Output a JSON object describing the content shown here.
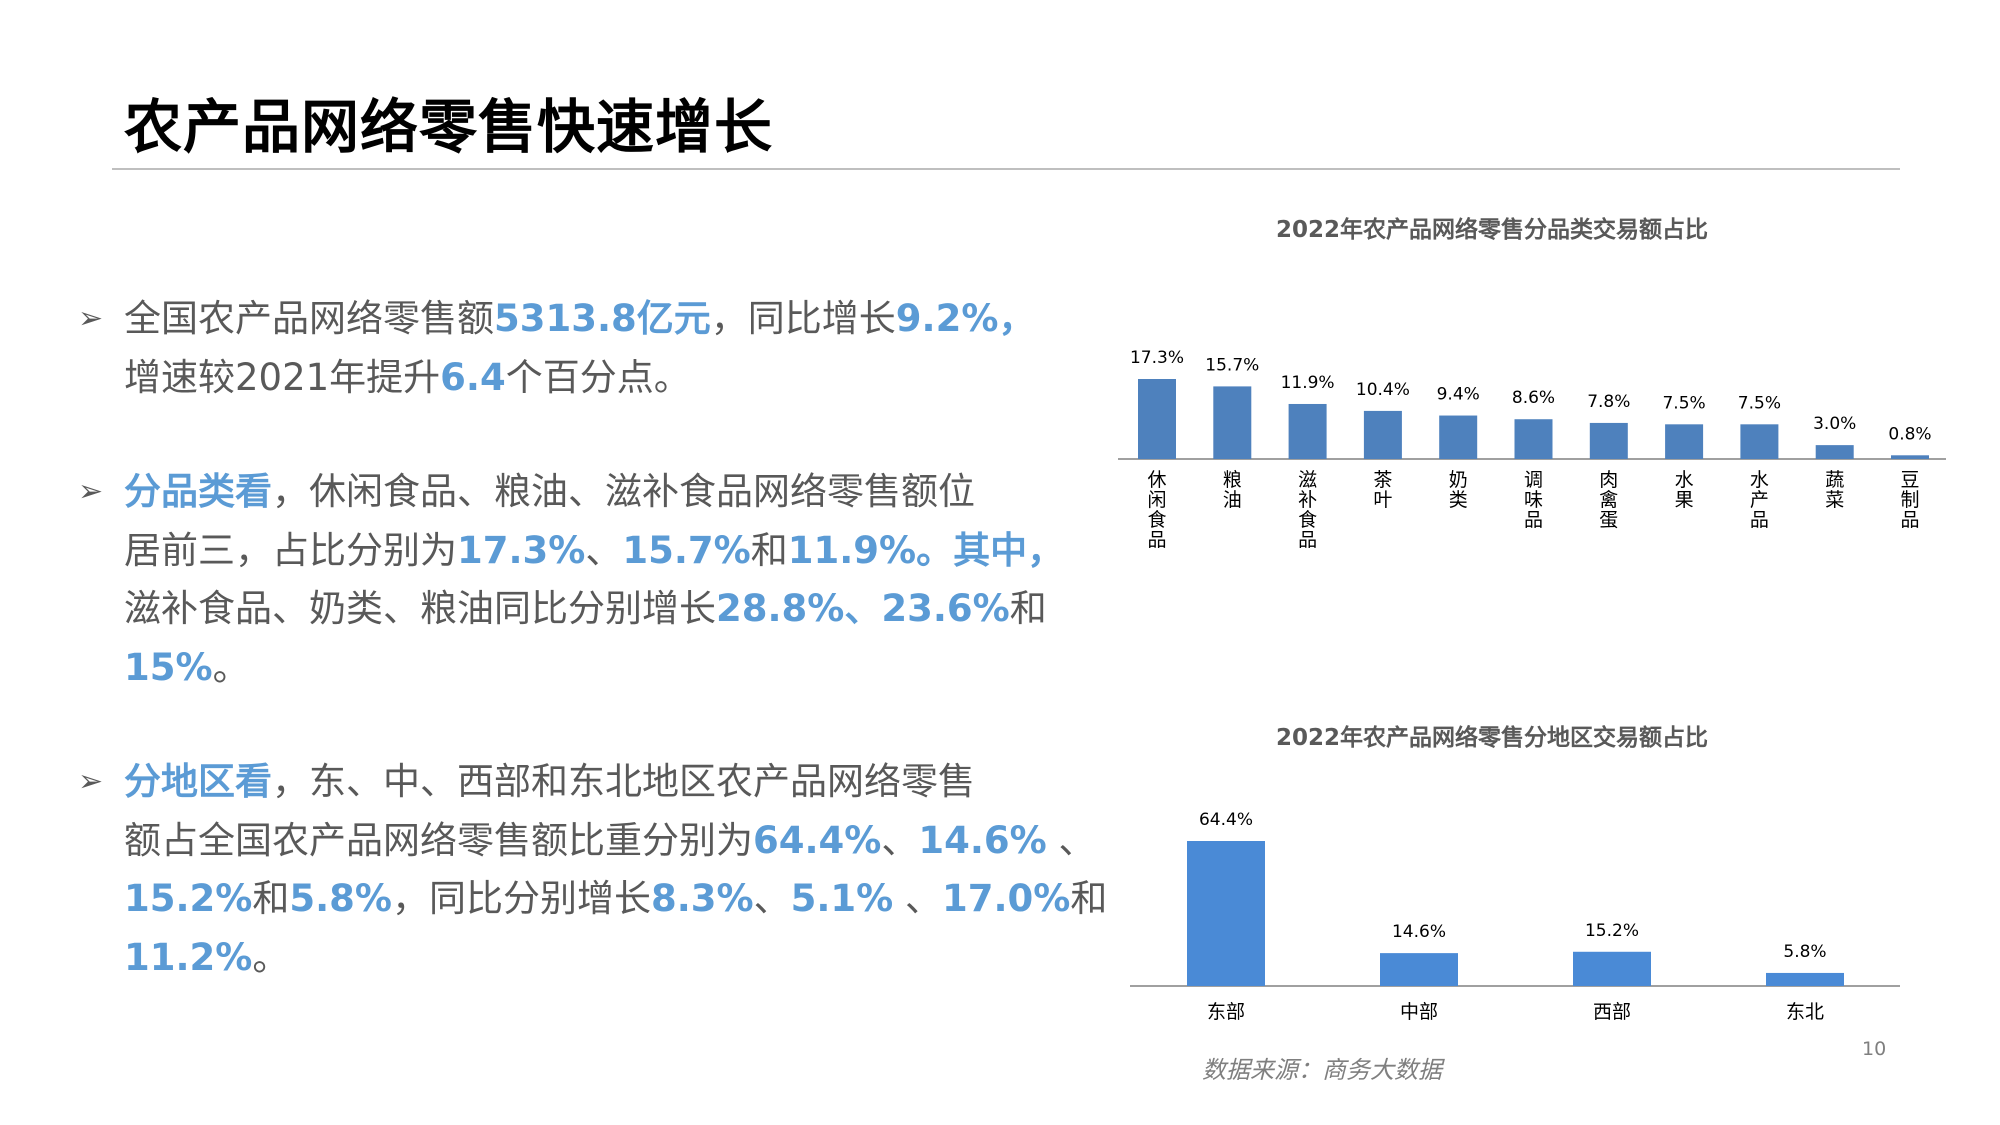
{
  "slide": {
    "title": "农产品网络零售快速增长",
    "page_number": "10",
    "source": "数据来源：商务大数据"
  },
  "bullets": [
    {
      "lines": [
        [
          {
            "t": "全国农产品网络零售额",
            "hl": false
          },
          {
            "t": "5313.8亿元",
            "hl": true
          },
          {
            "t": "，同比增长",
            "hl": false
          },
          {
            "t": "9.2%，",
            "hl": true
          }
        ],
        [
          {
            "t": "增速较2021年提升",
            "hl": false
          },
          {
            "t": "6.4",
            "hl": true
          },
          {
            "t": "个百分点。",
            "hl": false
          }
        ]
      ]
    },
    {
      "lines": [
        [
          {
            "t": "分品类看",
            "hl": true
          },
          {
            "t": "，休闲食品、粮油、滋补食品网络零售额位",
            "hl": false
          }
        ],
        [
          {
            "t": "居前三，占比分别为",
            "hl": false
          },
          {
            "t": "17.3%",
            "hl": true
          },
          {
            "t": "、",
            "hl": false
          },
          {
            "t": "15.7%",
            "hl": true
          },
          {
            "t": "和",
            "hl": false
          },
          {
            "t": "11.9%。其中，",
            "hl": true
          }
        ],
        [
          {
            "t": "滋补食品、奶类、粮油同比分别增长",
            "hl": false
          },
          {
            "t": "28.8%、23.6%",
            "hl": true
          },
          {
            "t": "和",
            "hl": false
          }
        ],
        [
          {
            "t": "15%",
            "hl": true
          },
          {
            "t": "。",
            "hl": false
          }
        ]
      ]
    },
    {
      "lines": [
        [
          {
            "t": "分地区看",
            "hl": true
          },
          {
            "t": "，东、中、西部和东北地区农产品网络零售",
            "hl": false
          }
        ],
        [
          {
            "t": "额占全国农产品网络零售额比重分别为",
            "hl": false
          },
          {
            "t": "64.4%",
            "hl": true
          },
          {
            "t": "、",
            "hl": false
          },
          {
            "t": "14.6%",
            "hl": true
          },
          {
            "t": " 、",
            "hl": false
          }
        ],
        [
          {
            "t": "15.2%",
            "hl": true
          },
          {
            "t": "和",
            "hl": false
          },
          {
            "t": "5.8%",
            "hl": true
          },
          {
            "t": "，同比分别增长",
            "hl": false
          },
          {
            "t": "8.3%",
            "hl": true
          },
          {
            "t": "、",
            "hl": false
          },
          {
            "t": "5.1%",
            "hl": true
          },
          {
            "t": " 、",
            "hl": false
          },
          {
            "t": "17.0%",
            "hl": true
          },
          {
            "t": "和",
            "hl": false
          }
        ],
        [
          {
            "t": "11.2%",
            "hl": true
          },
          {
            "t": "。",
            "hl": false
          }
        ]
      ]
    }
  ],
  "colors": {
    "highlight": "#5b9bd5",
    "body_text": "#595959",
    "bar_category": "#4e81bd",
    "bar_region": "#4a8ad6",
    "axis": "#808080"
  },
  "chart_data": [
    {
      "type": "bar",
      "title": "2022年农产品网络零售分品类交易额占比",
      "categories": [
        "休闲食品",
        "粮油",
        "滋补食品",
        "茶叶",
        "奶类",
        "调味品",
        "肉禽蛋",
        "水果",
        "水产品",
        "蔬菜",
        "豆制品"
      ],
      "values": [
        17.3,
        15.7,
        11.9,
        10.4,
        9.4,
        8.6,
        7.8,
        7.5,
        7.5,
        3.0,
        0.8
      ],
      "value_labels": [
        "17.3%",
        "15.7%",
        "11.9%",
        "10.4%",
        "9.4%",
        "8.6%",
        "7.8%",
        "7.5%",
        "7.5%",
        "3.0%",
        "0.8%"
      ],
      "unit": "%",
      "category_label_orientation": "vertical",
      "grid": false,
      "legend": "none"
    },
    {
      "type": "bar",
      "title": "2022年农产品网络零售分地区交易额占比",
      "categories": [
        "东部",
        "中部",
        "西部",
        "东北"
      ],
      "values": [
        64.4,
        14.6,
        15.2,
        5.8
      ],
      "value_labels": [
        "64.4%",
        "14.6%",
        "15.2%",
        "5.8%"
      ],
      "unit": "%",
      "category_label_orientation": "horizontal",
      "grid": false,
      "legend": "none"
    }
  ]
}
